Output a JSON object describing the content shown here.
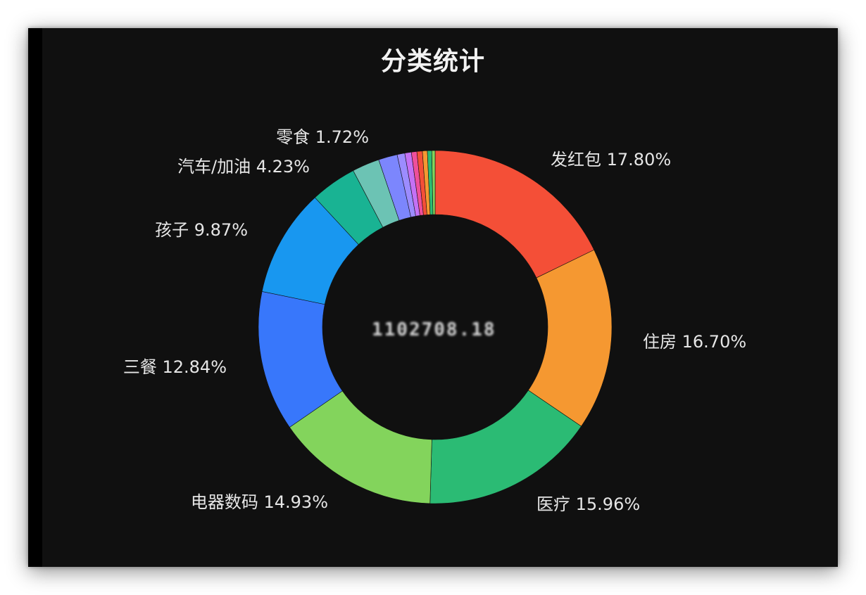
{
  "chart_data": {
    "type": "pie",
    "title": "分类统计",
    "center_text": "1102708.18",
    "slices": [
      {
        "label": "发红包 17.80%",
        "value": 17.8,
        "color": "#f44f37"
      },
      {
        "label": "住房 16.70%",
        "value": 16.7,
        "color": "#f59831"
      },
      {
        "label": "医疗 15.96%",
        "value": 15.96,
        "color": "#2bbb74"
      },
      {
        "label": "电器数码 14.93%",
        "value": 14.93,
        "color": "#83d45c"
      },
      {
        "label": "三餐 12.84%",
        "value": 12.84,
        "color": "#3877fb"
      },
      {
        "label": "孩子 9.87%",
        "value": 9.87,
        "color": "#1897f0"
      },
      {
        "label": "汽车/加油 4.23%",
        "value": 4.23,
        "color": "#19b393"
      },
      {
        "label": "",
        "value": 2.5,
        "color": "#6cc3b4"
      },
      {
        "label": "零食 1.72%",
        "value": 1.72,
        "color": "#7c86fd"
      },
      {
        "label": "",
        "value": 0.7,
        "color": "#9c8cff"
      },
      {
        "label": "",
        "value": 0.6,
        "color": "#c471f5"
      },
      {
        "label": "",
        "value": 0.5,
        "color": "#ee4f9b"
      },
      {
        "label": "",
        "value": 0.5,
        "color": "#f44f37"
      },
      {
        "label": "",
        "value": 0.45,
        "color": "#f59831"
      },
      {
        "label": "",
        "value": 0.4,
        "color": "#2bbb74"
      },
      {
        "label": "",
        "value": 0.3,
        "color": "#83d45c"
      }
    ]
  }
}
